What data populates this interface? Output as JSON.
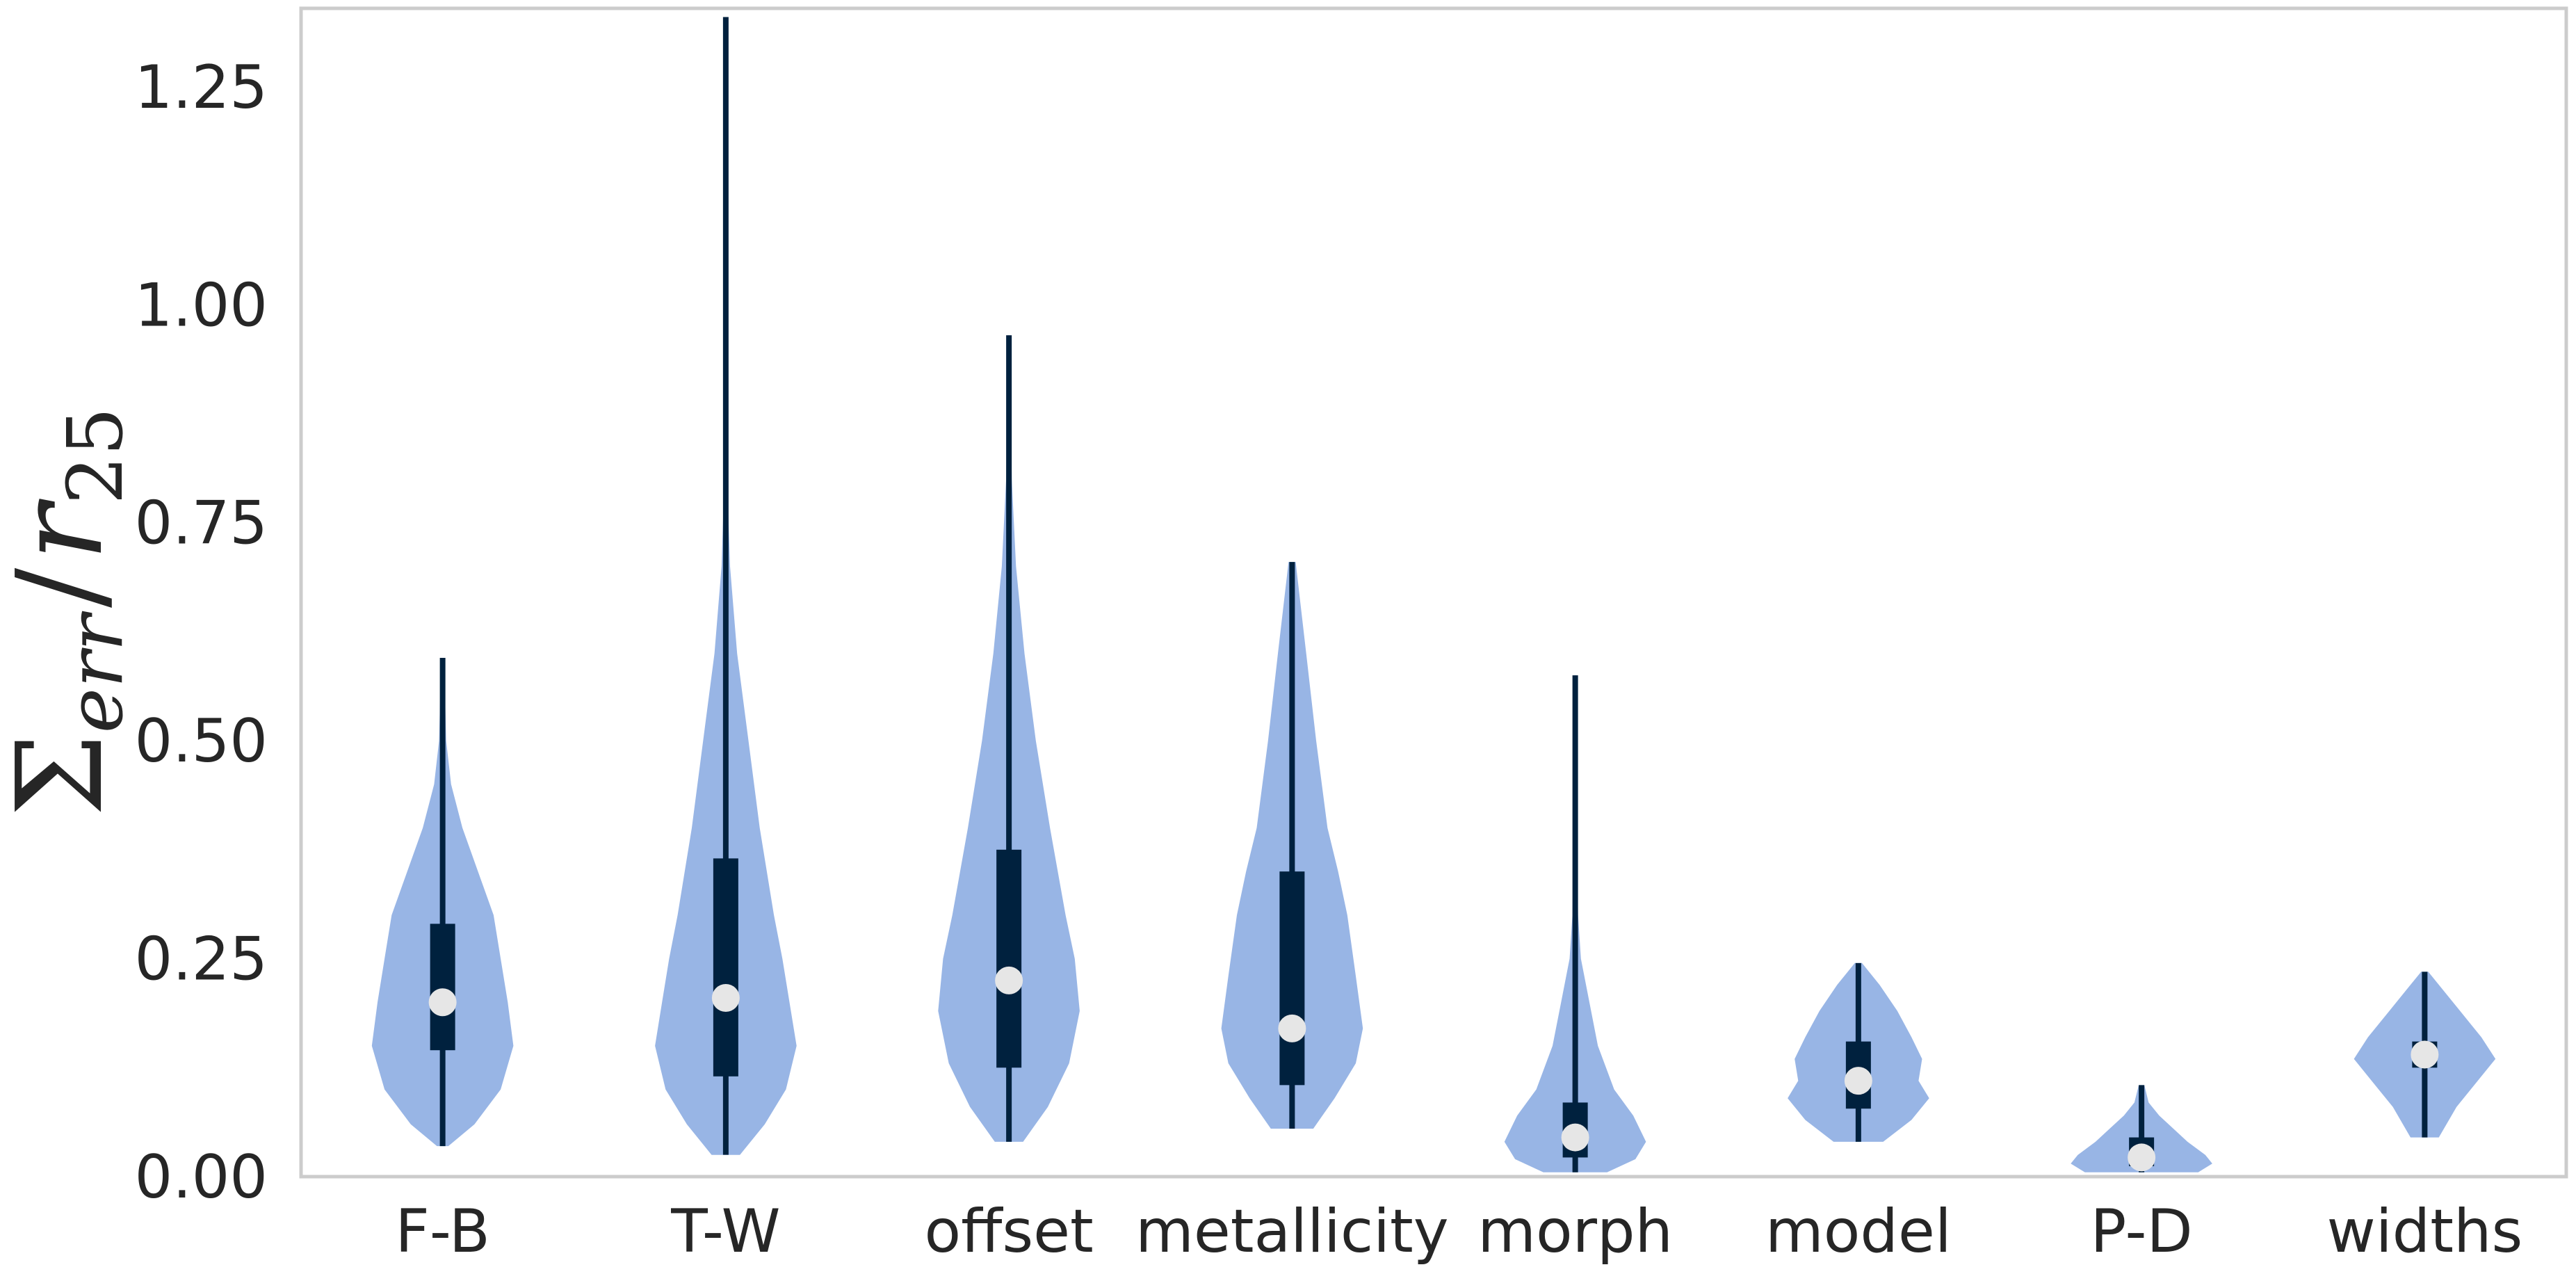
{
  "chart_data": {
    "type": "violin",
    "ylabel": "Σ_err / r_25",
    "ylabel_parts": {
      "sigma": "Σ",
      "sigma_sub": "err",
      "slash": "/",
      "r": "r",
      "r_sub": "25"
    },
    "ylim": [
      0.0,
      1.34
    ],
    "yticks": [
      0.0,
      0.25,
      0.5,
      0.75,
      1.0,
      1.25
    ],
    "ytick_labels": [
      "0.00",
      "0.25",
      "0.50",
      "0.75",
      "1.00",
      "1.25"
    ],
    "grid": false,
    "categories": [
      "F-B",
      "T-W",
      "offset",
      "metallicity",
      "morph",
      "model",
      "P-D",
      "widths"
    ],
    "stats": [
      {
        "min": 0.035,
        "q1": 0.145,
        "median": 0.2,
        "q3": 0.29,
        "max": 0.595
      },
      {
        "min": 0.025,
        "q1": 0.115,
        "median": 0.205,
        "q3": 0.365,
        "max": 1.33
      },
      {
        "min": 0.04,
        "q1": 0.125,
        "median": 0.225,
        "q3": 0.375,
        "max": 0.965
      },
      {
        "min": 0.055,
        "q1": 0.105,
        "median": 0.17,
        "q3": 0.35,
        "max": 0.705
      },
      {
        "min": 0.005,
        "q1": 0.022,
        "median": 0.045,
        "q3": 0.085,
        "max": 0.575
      },
      {
        "min": 0.04,
        "q1": 0.078,
        "median": 0.11,
        "q3": 0.155,
        "max": 0.245
      },
      {
        "min": 0.005,
        "q1": 0.012,
        "median": 0.022,
        "q3": 0.045,
        "max": 0.105
      },
      {
        "min": 0.045,
        "q1": 0.125,
        "median": 0.14,
        "q3": 0.155,
        "max": 0.235
      }
    ],
    "density_profiles": [
      [
        [
          0.035,
          0.08
        ],
        [
          0.06,
          0.45
        ],
        [
          0.1,
          0.82
        ],
        [
          0.15,
          1.0
        ],
        [
          0.2,
          0.92
        ],
        [
          0.25,
          0.82
        ],
        [
          0.3,
          0.72
        ],
        [
          0.35,
          0.5
        ],
        [
          0.4,
          0.28
        ],
        [
          0.45,
          0.12
        ],
        [
          0.5,
          0.05
        ],
        [
          0.595,
          0.02
        ]
      ],
      [
        [
          0.025,
          0.2
        ],
        [
          0.06,
          0.55
        ],
        [
          0.1,
          0.85
        ],
        [
          0.15,
          1.0
        ],
        [
          0.2,
          0.9
        ],
        [
          0.25,
          0.8
        ],
        [
          0.3,
          0.68
        ],
        [
          0.4,
          0.48
        ],
        [
          0.5,
          0.32
        ],
        [
          0.6,
          0.16
        ],
        [
          0.7,
          0.06
        ],
        [
          0.8,
          0.02
        ],
        [
          1.0,
          0.01
        ],
        [
          1.33,
          0.005
        ]
      ],
      [
        [
          0.04,
          0.2
        ],
        [
          0.08,
          0.55
        ],
        [
          0.13,
          0.85
        ],
        [
          0.19,
          1.0
        ],
        [
          0.25,
          0.93
        ],
        [
          0.3,
          0.8
        ],
        [
          0.4,
          0.58
        ],
        [
          0.5,
          0.38
        ],
        [
          0.6,
          0.22
        ],
        [
          0.7,
          0.1
        ],
        [
          0.8,
          0.04
        ],
        [
          0.965,
          0.01
        ]
      ],
      [
        [
          0.055,
          0.3
        ],
        [
          0.09,
          0.6
        ],
        [
          0.13,
          0.9
        ],
        [
          0.17,
          1.0
        ],
        [
          0.23,
          0.9
        ],
        [
          0.3,
          0.78
        ],
        [
          0.35,
          0.65
        ],
        [
          0.4,
          0.5
        ],
        [
          0.5,
          0.34
        ],
        [
          0.6,
          0.2
        ],
        [
          0.705,
          0.05
        ]
      ],
      [
        [
          0.005,
          0.45
        ],
        [
          0.02,
          0.85
        ],
        [
          0.04,
          1.0
        ],
        [
          0.07,
          0.82
        ],
        [
          0.1,
          0.55
        ],
        [
          0.15,
          0.32
        ],
        [
          0.2,
          0.2
        ],
        [
          0.25,
          0.08
        ],
        [
          0.3,
          0.04
        ],
        [
          0.4,
          0.02
        ],
        [
          0.575,
          0.01
        ]
      ],
      [
        [
          0.04,
          0.35
        ],
        [
          0.065,
          0.75
        ],
        [
          0.09,
          1.0
        ],
        [
          0.11,
          0.85
        ],
        [
          0.135,
          0.9
        ],
        [
          0.16,
          0.75
        ],
        [
          0.19,
          0.55
        ],
        [
          0.22,
          0.3
        ],
        [
          0.245,
          0.05
        ]
      ],
      [
        [
          0.005,
          0.8
        ],
        [
          0.015,
          1.0
        ],
        [
          0.025,
          0.9
        ],
        [
          0.04,
          0.65
        ],
        [
          0.055,
          0.45
        ],
        [
          0.07,
          0.25
        ],
        [
          0.085,
          0.1
        ],
        [
          0.105,
          0.04
        ]
      ],
      [
        [
          0.045,
          0.2
        ],
        [
          0.08,
          0.45
        ],
        [
          0.11,
          0.75
        ],
        [
          0.135,
          1.0
        ],
        [
          0.16,
          0.8
        ],
        [
          0.19,
          0.5
        ],
        [
          0.215,
          0.25
        ],
        [
          0.235,
          0.05
        ]
      ]
    ],
    "colors": {
      "violin": "#98b5e5",
      "box": "#00213e",
      "median": "#e6e6e6",
      "spine": "#cccccc",
      "text": "#262626"
    }
  }
}
